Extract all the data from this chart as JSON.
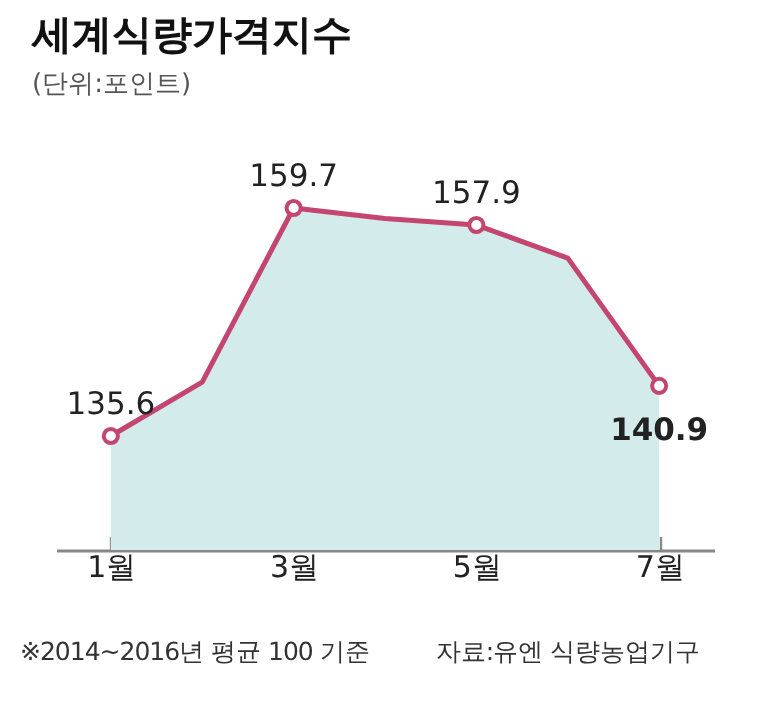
{
  "chart_data": {
    "type": "area",
    "title": "세계식량가격지수",
    "subtitle": "(단위:포인트)",
    "categories": [
      "1월",
      null,
      "3월",
      null,
      "5월",
      null,
      "7월"
    ],
    "series": [
      {
        "color": "#c4456f",
        "values": [
          135.6,
          141.3,
          159.7,
          158.6,
          157.9,
          154.4,
          140.9
        ],
        "value_labels": [
          "135.6",
          null,
          "159.7",
          null,
          "157.9",
          null,
          "140.9"
        ]
      }
    ],
    "marker": "circle",
    "tick_labels": "x",
    "annotations": [
      "※2014~2016년 평균 100 기준",
      "자료:유엔 식량농업기구"
    ]
  }
}
